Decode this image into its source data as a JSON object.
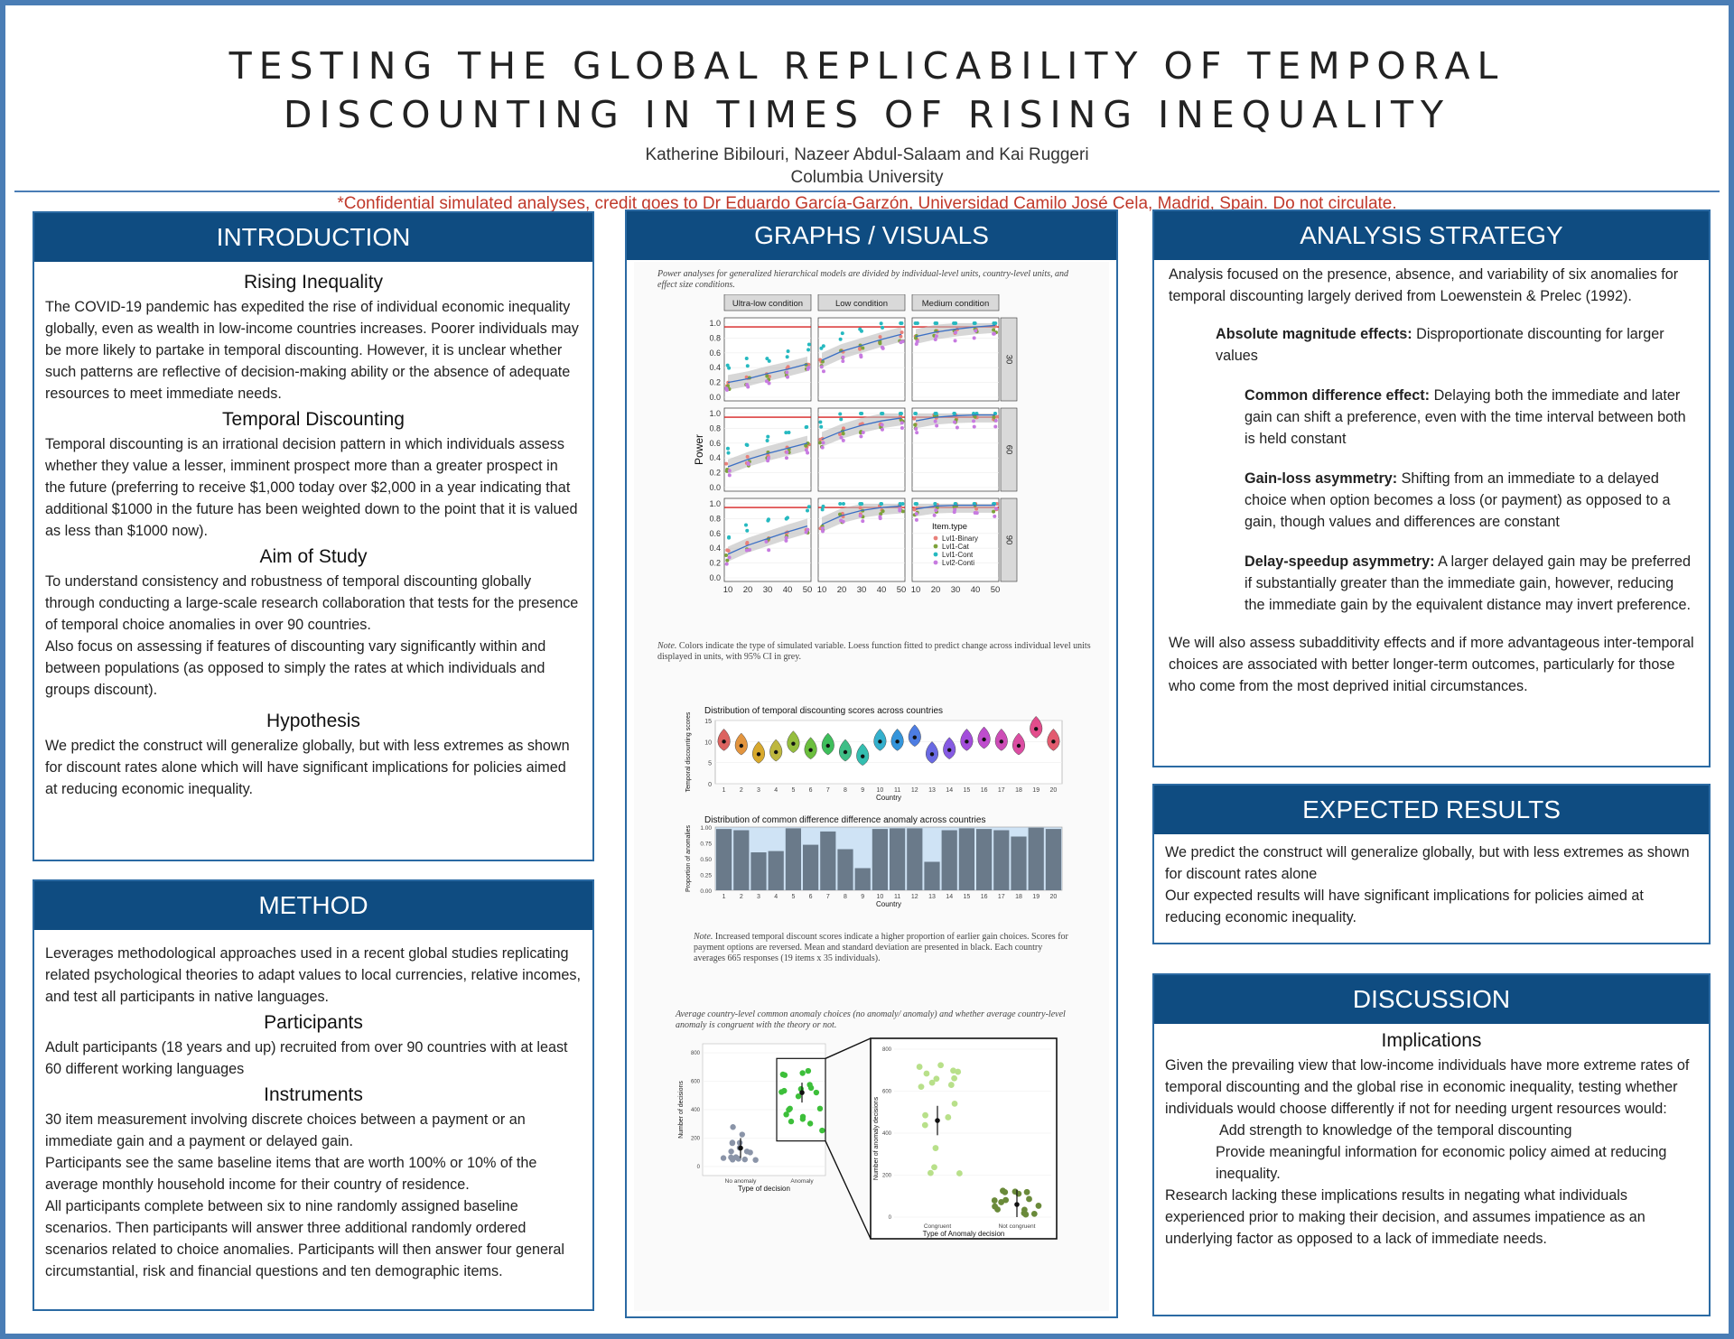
{
  "header": {
    "title_line1": "TESTING THE GLOBAL REPLICABILITY OF TEMPORAL",
    "title_line2": "DISCOUNTING IN TIMES OF RISING INEQUALITY",
    "authors": "Katherine Bibilouri, Nazeer Abdul-Salaam and Kai Ruggeri",
    "affiliation": "Columbia University",
    "confidential": "*Confidential simulated analyses, credit goes to Dr Eduardo García-Garzón, Universidad Camilo José Cela, Madrid, Spain. Do not circulate."
  },
  "introduction": {
    "heading": "INTRODUCTION",
    "s1_title": "Rising Inequality",
    "s1_text": "The COVID-19 pandemic has expedited the rise of individual economic inequality globally, even as wealth in low-income countries increases. Poorer individuals may be more likely to partake in temporal discounting. However, it is unclear whether such patterns are reflective of decision-making ability or the absence of adequate resources to meet immediate needs.",
    "s2_title": "Temporal Discounting",
    "s2_text": "Temporal discounting is an irrational decision pattern in which individuals assess whether they value a lesser, imminent prospect more than a greater prospect in the future (preferring to receive $1,000 today over $2,000 in a year indicating that additional $1000 in the future has been weighted down to the point that it is valued as less than $1000 now).",
    "s3_title": "Aim of Study",
    "s3_text1": "To understand consistency and robustness of temporal discounting globally through conducting a large-scale research collaboration that tests for the presence of temporal choice anomalies in over 90 countries.",
    "s3_text2": "Also focus on assessing if features of discounting vary significantly within and between populations (as opposed to simply the rates at which individuals and groups discount).",
    "s4_title": "Hypothesis",
    "s4_text": "We predict the construct will generalize globally, but with less extremes as shown for discount rates alone which will have significant implications for policies aimed at reducing economic inequality."
  },
  "method": {
    "heading": "METHOD",
    "intro": "Leverages methodological approaches used in a recent global studies replicating related psychological theories to adapt values to local currencies, relative incomes, and test all participants in native languages.",
    "s1_title": "Participants",
    "s1_text": "Adult participants (18 years and up) recruited from over 90 countries with at least 60 different working languages",
    "s2_title": "Instruments",
    "s2_text1": "30 item measurement involving discrete choices between a payment or an immediate gain and a payment or delayed gain.",
    "s2_text2": "Participants see the same baseline items that are worth 100% or 10% of the average monthly household income for their country of residence.",
    "s2_text3": "All participants complete between six to nine randomly assigned baseline scenarios. Then participants will answer three additional randomly ordered scenarios related to choice anomalies.  Participants will then answer four general circumstantial, risk and financial questions and ten demographic items."
  },
  "graphs": {
    "heading": "GRAPHS / VISUALS",
    "fig1_caption": "Power analyses for generalized hierarchical models are divided by individual-level units, country-level units, and effect size conditions.",
    "fig1_note_label": "Note.",
    "fig1_note": " Colors indicate the type of simulated variable. Loess function fitted to predict change across individual level units displayed in units, with 95% CI in grey.",
    "fig2_note_label": "Note.",
    "fig2_note": " Increased temporal discount scores indicate a higher proportion of earlier gain choices. Scores for payment options are reversed. Mean and standard deviation are presented in black. Each country averages 665 responses (19 items x 35 individuals).",
    "fig3_caption": "Average country-level common anomaly choices (no anomaly/ anomaly) and whether average country-level anomaly is congruent with the theory or not."
  },
  "analysis": {
    "heading": "ANALYSIS STRATEGY",
    "intro": "Analysis focused on the presence, absence, and variability of six anomalies for temporal discounting largely derived from Loewenstein & Prelec (1992).",
    "a1_term": "Absolute magnitude effects:",
    "a1_text": " Disproportionate discounting for larger values",
    "a2_term": "Common difference effect:",
    "a2_text": " Delaying both the immediate and later gain can shift a preference, even with the time interval between both is held constant",
    "a3_term": "Gain-loss asymmetry:",
    "a3_text": " Shifting from an immediate to a delayed choice when option becomes a loss (or payment) as opposed to a gain, though values and differences are constant",
    "a4_term": "Delay-speedup asymmetry:",
    "a4_text": " A larger delayed gain may be preferred if substantially greater than the immediate gain, however, reducing the immediate gain by the equivalent distance may invert preference.",
    "outro": "We will also assess subadditivity effects and if more advantageous inter-temporal choices are associated with better longer-term outcomes, particularly for those who come from the most deprived initial circumstances."
  },
  "expected": {
    "heading": "EXPECTED RESULTS",
    "text1": "We predict the construct will generalize globally, but with less extremes as shown for discount rates alone",
    "text2": "Our expected results will have significant implications for policies aimed at reducing economic inequality."
  },
  "discussion": {
    "heading": "DISCUSSION",
    "sub": "Implications",
    "text1": "Given the prevailing view that low-income individuals have more extreme rates of temporal discounting and the global rise in economic inequality, testing whether individuals would choose differently if not for needing urgent resources would:",
    "item1": "Add strength to knowledge of the temporal discounting",
    "item2": "Provide meaningful information for economic policy aimed at reducing inequality.",
    "text2": "Research lacking these implications results in negating what individuals experienced prior to making their decision, and assumes impatience as an underlying factor as opposed to a lack of immediate needs."
  },
  "chart_data": [
    {
      "type": "line",
      "facet_cols": [
        "Ultra-low condition",
        "Low condition",
        "Medium condition"
      ],
      "facet_rows": [
        "30",
        "60",
        "90"
      ],
      "xlabel": "Individual level units",
      "ylabel": "Power",
      "x_ticks": [
        10,
        20,
        30,
        40,
        50
      ],
      "y_ticks": [
        "0.0",
        "0.2",
        "0.4",
        "0.6",
        "0.8",
        "1.0"
      ],
      "ylim": [
        0,
        1
      ],
      "x": [
        10,
        20,
        30,
        40,
        50
      ],
      "legend_title": "Item.type",
      "legend": [
        "Lvl1-Binary",
        "Lvl1-Cat",
        "Lvl1-Cont",
        "Lvl2-Conti"
      ],
      "legend_position": "inside-bottom-right",
      "reference_line": 0.95,
      "colors": {
        "Lvl1-Binary": "#e8807a",
        "Lvl1-Cat": "#7da23a",
        "Lvl1-Cont": "#26b9c0",
        "Lvl2-Conti": "#c77be0",
        "fit": "#3b6fc4",
        "ref": "#d62020"
      },
      "fit_curves": [
        [
          [
            0.2,
            0.25,
            0.32,
            0.38,
            0.45
          ],
          [
            0.5,
            0.62,
            0.7,
            0.78,
            0.85
          ],
          [
            0.82,
            0.88,
            0.92,
            0.95,
            0.97
          ]
        ],
        [
          [
            0.28,
            0.38,
            0.46,
            0.53,
            0.6
          ],
          [
            0.65,
            0.76,
            0.84,
            0.9,
            0.94
          ],
          [
            0.9,
            0.95,
            0.97,
            0.98,
            0.98
          ]
        ],
        [
          [
            0.32,
            0.44,
            0.53,
            0.62,
            0.7
          ],
          [
            0.72,
            0.84,
            0.91,
            0.95,
            0.97
          ],
          [
            0.93,
            0.97,
            0.98,
            0.98,
            0.98
          ]
        ]
      ]
    },
    {
      "type": "violin",
      "title": "Distribution of temporal discounting scores across countries",
      "xlabel": "Country",
      "ylabel": "Temporal discounting scores",
      "categories": [
        "1",
        "2",
        "3",
        "4",
        "5",
        "6",
        "7",
        "8",
        "9",
        "10",
        "11",
        "12",
        "13",
        "14",
        "15",
        "16",
        "17",
        "18",
        "19",
        "20"
      ],
      "y_ticks": [
        "0",
        "5",
        "10",
        "15"
      ],
      "ylim": [
        0,
        15
      ],
      "values": [
        10,
        9,
        7,
        7.5,
        9.5,
        8,
        9,
        7.5,
        6.5,
        10,
        10,
        11,
        7,
        8,
        10,
        10.5,
        10,
        9,
        13,
        10
      ]
    },
    {
      "type": "bar",
      "title": "Distribution of common difference difference anomaly across countries",
      "xlabel": "Country",
      "ylabel": "Proportion of anomalies",
      "categories": [
        "1",
        "2",
        "3",
        "4",
        "5",
        "6",
        "7",
        "8",
        "9",
        "10",
        "11",
        "12",
        "13",
        "14",
        "15",
        "16",
        "17",
        "18",
        "19",
        "20"
      ],
      "y_ticks": [
        "0.00",
        "0.25",
        "0.50",
        "0.75",
        "1.00"
      ],
      "ylim": [
        0,
        1
      ],
      "values": [
        0.97,
        0.95,
        0.6,
        0.62,
        0.98,
        0.72,
        0.93,
        0.65,
        0.35,
        0.97,
        0.98,
        0.98,
        0.45,
        0.95,
        0.98,
        0.97,
        0.95,
        0.85,
        0.99,
        0.97
      ]
    },
    {
      "type": "scatter",
      "xlabel": "Type of decision",
      "ylabel": "Number of decisions",
      "categories": [
        "No anomaly",
        "Anomaly"
      ],
      "y_ticks": [
        "0",
        "200",
        "400",
        "600",
        "800"
      ],
      "ylim": [
        0,
        800
      ],
      "means": [
        130,
        520
      ]
    },
    {
      "type": "scatter",
      "xlabel": "Type of Anomaly decision",
      "ylabel": "Number of anomaly decisions",
      "categories": [
        "Congruent",
        "Not congruent"
      ],
      "y_ticks": [
        "0",
        "200",
        "400",
        "600",
        "800"
      ],
      "ylim": [
        0,
        800
      ],
      "means": [
        460,
        60
      ]
    }
  ]
}
